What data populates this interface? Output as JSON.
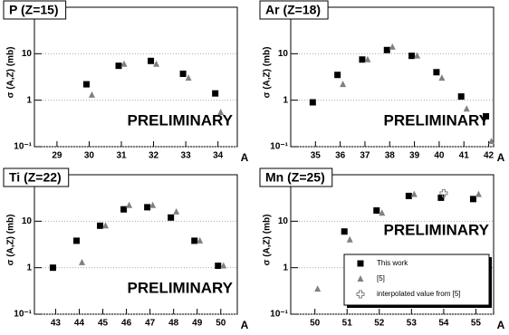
{
  "chart_data": [
    {
      "type": "scatter",
      "title": "P (Z=15)",
      "ylabel": "σ (A,Z) (mb)",
      "xlabel": "A",
      "annotation": "PRELIMINARY",
      "x": [
        30,
        31,
        32,
        33,
        34
      ],
      "series": [
        {
          "marker": "square",
          "color": "#000000",
          "values": [
            2.2,
            5.5,
            7,
            3.7,
            1.4
          ]
        },
        {
          "marker": "triangle",
          "color": "#808080",
          "values": [
            1.3,
            6,
            6,
            3,
            0.55
          ]
        }
      ],
      "xlim": [
        28.3,
        34.6
      ],
      "ylim": [
        0.1,
        100
      ],
      "xticks": [
        29,
        30,
        31,
        32,
        33,
        34
      ],
      "yticks": [
        {
          "value": 0.1,
          "label": "10⁻¹"
        },
        1,
        10
      ],
      "log_y": true,
      "grid": true
    },
    {
      "type": "scatter",
      "title": "Ar (Z=18)",
      "ylabel": "σ (A,Z) (mb)",
      "xlabel": "A",
      "annotation": "PRELIMINARY",
      "x": [
        35,
        36,
        37,
        38,
        39,
        40,
        41,
        42
      ],
      "series": [
        {
          "marker": "square",
          "color": "#000000",
          "values": [
            0.9,
            3.5,
            7.5,
            12,
            9,
            4,
            1.2,
            0.45
          ]
        },
        {
          "marker": "triangle",
          "color": "#808080",
          "values": [
            null,
            2.2,
            7.5,
            14,
            9,
            3,
            0.65,
            0.13
          ]
        }
      ],
      "xlim": [
        34.0,
        42.2
      ],
      "ylim": [
        0.1,
        100
      ],
      "xticks": [
        35,
        36,
        37,
        38,
        39,
        40,
        41,
        42
      ],
      "yticks": [
        {
          "value": 0.1,
          "label": "10⁻¹"
        },
        1,
        10
      ],
      "log_y": true,
      "grid": true
    },
    {
      "type": "scatter",
      "title": "Ti (Z=22)",
      "ylabel": "σ (A,Z) (mb)",
      "xlabel": "A",
      "annotation": "PRELIMINARY",
      "x": [
        43,
        44,
        45,
        46,
        47,
        48,
        49,
        50
      ],
      "series": [
        {
          "marker": "square",
          "color": "#000000",
          "values": [
            1,
            3.8,
            8,
            18,
            20,
            12,
            3.8,
            1.1
          ]
        },
        {
          "marker": "triangle",
          "color": "#808080",
          "values": [
            null,
            1.3,
            8,
            22,
            22,
            16,
            3.8,
            1.1
          ]
        }
      ],
      "xlim": [
        42.1,
        50.7
      ],
      "ylim": [
        0.1,
        100
      ],
      "xticks": [
        43,
        44,
        45,
        46,
        47,
        48,
        49,
        50
      ],
      "yticks": [
        {
          "value": 0.1,
          "label": "10⁻¹"
        },
        1,
        10
      ],
      "log_y": true,
      "grid": true
    },
    {
      "type": "scatter",
      "title": "Mn (Z=25)",
      "ylabel": "σ (A,Z) (mb)",
      "xlabel": "A",
      "annotation": "PRELIMINARY",
      "x": [
        50,
        51,
        52,
        53,
        54,
        55
      ],
      "series": [
        {
          "name": "This work",
          "marker": "square",
          "color": "#000000",
          "values": [
            null,
            6,
            17,
            35,
            32,
            30
          ]
        },
        {
          "name": "[5]",
          "marker": "triangle",
          "color": "#808080",
          "values": [
            0.35,
            4,
            15,
            38,
            null,
            38
          ]
        },
        {
          "name": "interpolated value from [5]",
          "marker": "cross",
          "color": "#808080",
          "values": [
            null,
            null,
            null,
            null,
            40,
            null
          ]
        }
      ],
      "xlim": [
        49.25,
        55.55
      ],
      "ylim": [
        0.1,
        100
      ],
      "xticks": [
        50,
        51,
        52,
        53,
        54,
        55
      ],
      "yticks": [
        {
          "value": 0.1,
          "label": "10⁻¹"
        },
        1,
        10
      ],
      "log_y": true,
      "grid": true,
      "legend": "lower right"
    }
  ]
}
